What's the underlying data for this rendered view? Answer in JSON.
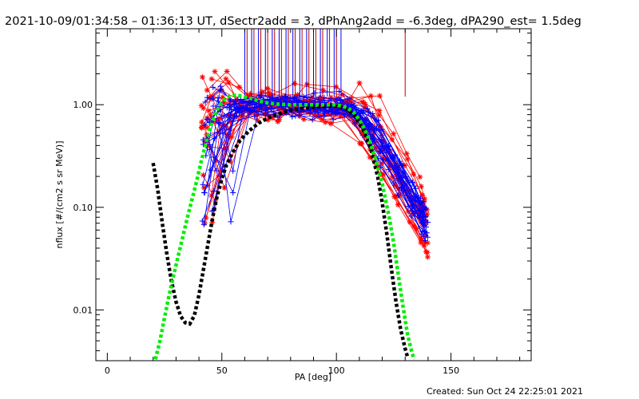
{
  "chart_data": {
    "type": "line",
    "title": "2021-10-09/01:34:58 – 01:36:13 UT, dSectr2add = 3, dPhAng2add = -6.3deg, dPA290_est=  1.5deg",
    "xlabel": "PA [deg]",
    "ylabel": "nflux [#/(cm2 s sr MeV)]",
    "xlim": [
      -5,
      185
    ],
    "ylim": [
      0.0032,
      5.5
    ],
    "yscale": "log",
    "xticks": [
      0,
      50,
      100,
      150
    ],
    "xtick_labels": [
      "0",
      "50",
      "100",
      "150"
    ],
    "yticks": [
      0.01,
      0.1,
      1.0
    ],
    "ytick_labels": [
      "0.01",
      "0.10",
      "1.00"
    ],
    "footer": "Created: Sun Oct 24 22:25:01 2021",
    "colors": {
      "red": "#ff0000",
      "blue": "#0000ff",
      "green": "#00ee00",
      "black": "#000000",
      "darkred": "#bb0000"
    },
    "vertical_markers": {
      "y_range": [
        1.2,
        5.5
      ],
      "x": [
        60,
        61,
        63,
        64,
        66,
        67,
        69,
        70,
        72,
        73,
        75,
        76,
        78,
        79,
        81,
        82,
        84,
        85,
        87,
        88,
        90,
        91,
        93,
        94,
        96,
        97,
        99,
        100,
        102,
        130
      ]
    },
    "series": [
      {
        "name": "model-black",
        "style": "dashed-thick",
        "color": "#000000",
        "x": [
          20,
          22,
          24,
          26,
          28,
          30,
          32,
          34,
          36,
          38,
          40,
          42,
          44,
          46,
          48,
          50,
          52,
          55,
          58,
          62,
          66,
          70,
          75,
          80,
          85,
          90,
          95,
          100,
          104,
          108,
          112,
          115,
          118,
          120,
          122,
          124,
          126,
          128,
          130,
          131
        ],
        "y": [
          0.27,
          0.15,
          0.07,
          0.035,
          0.019,
          0.012,
          0.0087,
          0.0075,
          0.0073,
          0.0088,
          0.014,
          0.025,
          0.045,
          0.08,
          0.13,
          0.19,
          0.26,
          0.35,
          0.45,
          0.56,
          0.66,
          0.74,
          0.82,
          0.88,
          0.92,
          0.95,
          0.97,
          0.97,
          0.92,
          0.78,
          0.55,
          0.37,
          0.2,
          0.11,
          0.055,
          0.025,
          0.012,
          0.0065,
          0.0042,
          0.0035
        ]
      },
      {
        "name": "model-green",
        "style": "dashed-thick",
        "color": "#00ee00",
        "x": [
          21,
          23,
          25,
          27,
          29,
          31,
          33,
          35,
          37,
          39,
          41,
          43,
          45,
          47,
          49,
          51,
          53,
          55,
          58,
          62,
          66,
          70,
          75,
          80,
          85,
          90,
          95,
          100,
          105,
          108,
          111,
          114,
          117,
          120,
          123,
          125,
          127,
          129,
          131,
          133,
          134
        ],
        "y": [
          0.0033,
          0.005,
          0.0085,
          0.014,
          0.022,
          0.034,
          0.052,
          0.08,
          0.12,
          0.18,
          0.28,
          0.42,
          0.6,
          0.8,
          0.98,
          1.12,
          1.2,
          1.24,
          1.22,
          1.16,
          1.09,
          1.04,
          1.01,
          1.0,
          1.0,
          1.0,
          1.0,
          1.0,
          0.93,
          0.82,
          0.66,
          0.48,
          0.3,
          0.17,
          0.08,
          0.045,
          0.022,
          0.011,
          0.0058,
          0.0038,
          0.0033
        ]
      }
    ]
  }
}
